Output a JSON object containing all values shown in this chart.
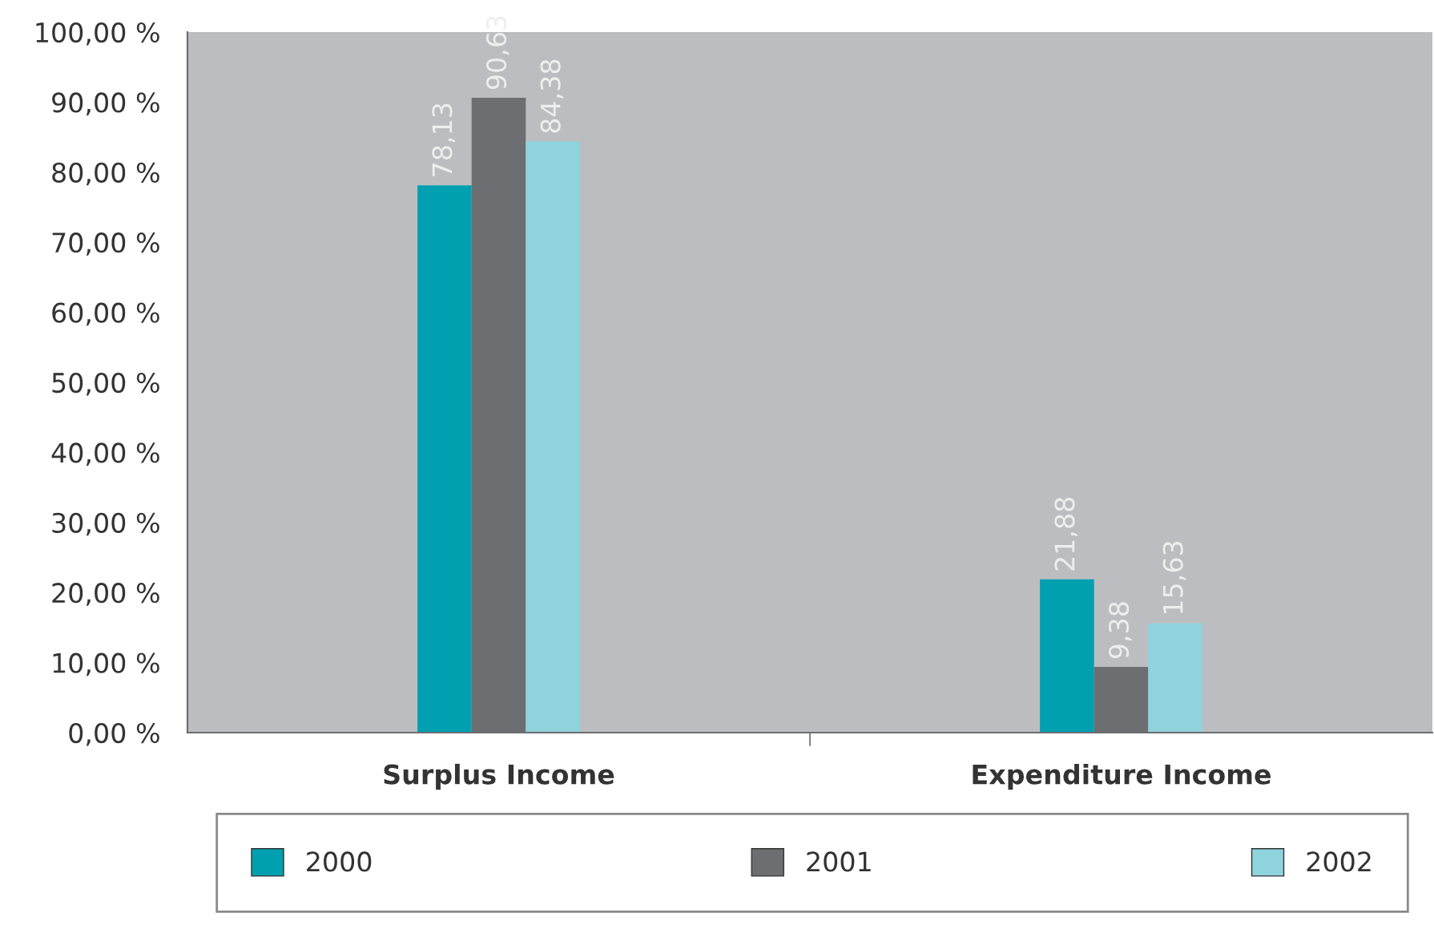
{
  "chart_data": {
    "type": "bar",
    "categories": [
      "Surplus Income",
      "Expenditure Income"
    ],
    "series": [
      {
        "name": "2000",
        "color": "#00a0b0",
        "values": [
          78.13,
          21.88
        ],
        "value_labels": [
          "78,13",
          "21,88"
        ]
      },
      {
        "name": "2001",
        "color": "#6d6e71",
        "values": [
          90.63,
          9.38
        ],
        "value_labels": [
          "90,63",
          "9,38"
        ]
      },
      {
        "name": "2002",
        "color": "#8fd3dc",
        "values": [
          84.38,
          15.63
        ],
        "value_labels": [
          "84,38",
          "15,63"
        ]
      }
    ],
    "ylim": [
      0,
      100
    ],
    "yticks": [
      {
        "value": 0,
        "label": "0,00 %"
      },
      {
        "value": 10,
        "label": "10,00 %"
      },
      {
        "value": 20,
        "label": "20,00 %"
      },
      {
        "value": 30,
        "label": "30,00 %"
      },
      {
        "value": 40,
        "label": "40,00 %"
      },
      {
        "value": 50,
        "label": "50,00 %"
      },
      {
        "value": 60,
        "label": "60,00 %"
      },
      {
        "value": 70,
        "label": "70,00 %"
      },
      {
        "value": 80,
        "label": "80,00 %"
      },
      {
        "value": 90,
        "label": "90,00 %"
      },
      {
        "value": 100,
        "label": "100,00 %"
      }
    ],
    "grid": false,
    "legend": "bottom"
  }
}
